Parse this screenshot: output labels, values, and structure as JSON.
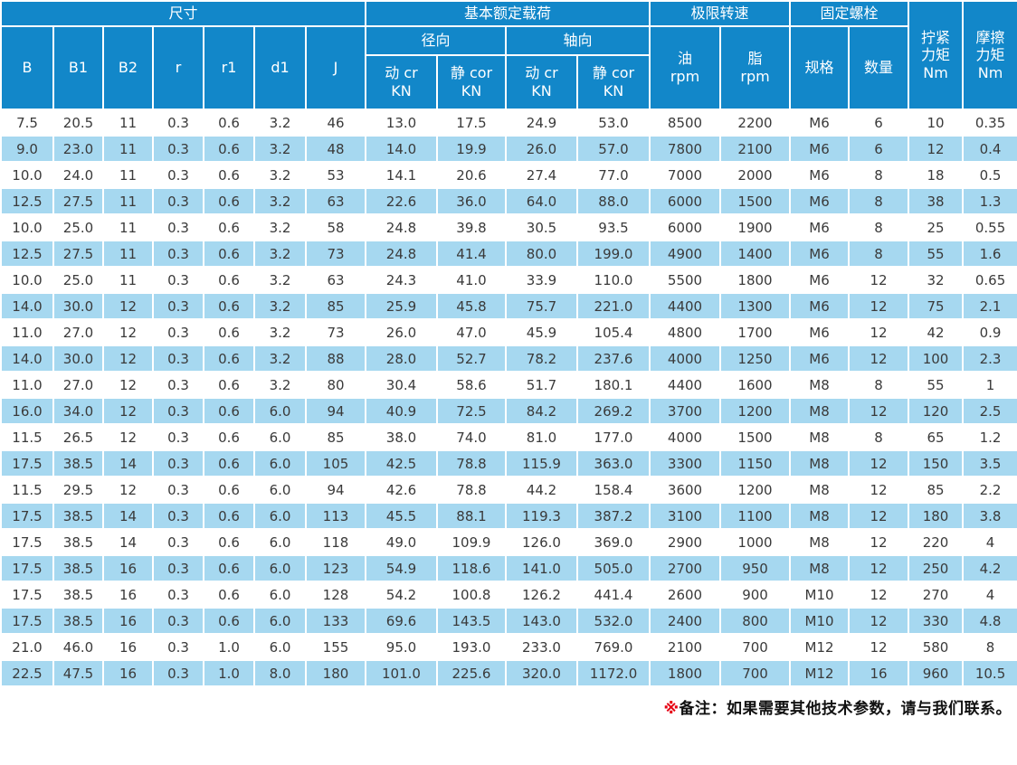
{
  "table": {
    "header": {
      "group_dimensions": "尺寸",
      "group_load": "基本额定载荷",
      "group_speed": "极限转速",
      "group_bolt": "固定螺栓",
      "tighten_torque": "拧紧\n力矩\nNm",
      "friction_torque": "摩擦\n力矩\nNm",
      "dims": [
        "B",
        "B1",
        "B2",
        "r",
        "r1",
        "d1",
        "J"
      ],
      "radial": "径向",
      "axial": "轴向",
      "dyn_cr": "动 cr\nKN",
      "stat_cor": "静 cor\nKN",
      "oil": "油\nrpm",
      "grease": "脂\nrpm",
      "spec": "规格",
      "qty": "数量"
    },
    "rows": [
      [
        "7.5",
        "20.5",
        "11",
        "0.3",
        "0.6",
        "3.2",
        "46",
        "13.0",
        "17.5",
        "24.9",
        "53.0",
        "8500",
        "2200",
        "M6",
        "6",
        "10",
        "0.35"
      ],
      [
        "9.0",
        "23.0",
        "11",
        "0.3",
        "0.6",
        "3.2",
        "48",
        "14.0",
        "19.9",
        "26.0",
        "57.0",
        "7800",
        "2100",
        "M6",
        "6",
        "12",
        "0.4"
      ],
      [
        "10.0",
        "24.0",
        "11",
        "0.3",
        "0.6",
        "3.2",
        "53",
        "14.1",
        "20.6",
        "27.4",
        "77.0",
        "7000",
        "2000",
        "M6",
        "8",
        "18",
        "0.5"
      ],
      [
        "12.5",
        "27.5",
        "11",
        "0.3",
        "0.6",
        "3.2",
        "63",
        "22.6",
        "36.0",
        "64.0",
        "88.0",
        "6000",
        "1500",
        "M6",
        "8",
        "38",
        "1.3"
      ],
      [
        "10.0",
        "25.0",
        "11",
        "0.3",
        "0.6",
        "3.2",
        "58",
        "24.8",
        "39.8",
        "30.5",
        "93.5",
        "6000",
        "1900",
        "M6",
        "8",
        "25",
        "0.55"
      ],
      [
        "12.5",
        "27.5",
        "11",
        "0.3",
        "0.6",
        "3.2",
        "73",
        "24.8",
        "41.4",
        "80.0",
        "199.0",
        "4900",
        "1400",
        "M6",
        "8",
        "55",
        "1.6"
      ],
      [
        "10.0",
        "25.0",
        "11",
        "0.3",
        "0.6",
        "3.2",
        "63",
        "24.3",
        "41.0",
        "33.9",
        "110.0",
        "5500",
        "1800",
        "M6",
        "12",
        "32",
        "0.65"
      ],
      [
        "14.0",
        "30.0",
        "12",
        "0.3",
        "0.6",
        "3.2",
        "85",
        "25.9",
        "45.8",
        "75.7",
        "221.0",
        "4400",
        "1300",
        "M6",
        "12",
        "75",
        "2.1"
      ],
      [
        "11.0",
        "27.0",
        "12",
        "0.3",
        "0.6",
        "3.2",
        "73",
        "26.0",
        "47.0",
        "45.9",
        "105.4",
        "4800",
        "1700",
        "M6",
        "12",
        "42",
        "0.9"
      ],
      [
        "14.0",
        "30.0",
        "12",
        "0.3",
        "0.6",
        "3.2",
        "88",
        "28.0",
        "52.7",
        "78.2",
        "237.6",
        "4000",
        "1250",
        "M6",
        "12",
        "100",
        "2.3"
      ],
      [
        "11.0",
        "27.0",
        "12",
        "0.3",
        "0.6",
        "3.2",
        "80",
        "30.4",
        "58.6",
        "51.7",
        "180.1",
        "4400",
        "1600",
        "M8",
        "8",
        "55",
        "1"
      ],
      [
        "16.0",
        "34.0",
        "12",
        "0.3",
        "0.6",
        "6.0",
        "94",
        "40.9",
        "72.5",
        "84.2",
        "269.2",
        "3700",
        "1200",
        "M8",
        "12",
        "120",
        "2.5"
      ],
      [
        "11.5",
        "26.5",
        "12",
        "0.3",
        "0.6",
        "6.0",
        "85",
        "38.0",
        "74.0",
        "81.0",
        "177.0",
        "4000",
        "1500",
        "M8",
        "8",
        "65",
        "1.2"
      ],
      [
        "17.5",
        "38.5",
        "14",
        "0.3",
        "0.6",
        "6.0",
        "105",
        "42.5",
        "78.8",
        "115.9",
        "363.0",
        "3300",
        "1150",
        "M8",
        "12",
        "150",
        "3.5"
      ],
      [
        "11.5",
        "29.5",
        "12",
        "0.3",
        "0.6",
        "6.0",
        "94",
        "42.6",
        "78.8",
        "44.2",
        "158.4",
        "3600",
        "1200",
        "M8",
        "12",
        "85",
        "2.2"
      ],
      [
        "17.5",
        "38.5",
        "14",
        "0.3",
        "0.6",
        "6.0",
        "113",
        "45.5",
        "88.1",
        "119.3",
        "387.2",
        "3100",
        "1100",
        "M8",
        "12",
        "180",
        "3.8"
      ],
      [
        "17.5",
        "38.5",
        "14",
        "0.3",
        "0.6",
        "6.0",
        "118",
        "49.0",
        "109.9",
        "126.0",
        "369.0",
        "2900",
        "1000",
        "M8",
        "12",
        "220",
        "4"
      ],
      [
        "17.5",
        "38.5",
        "16",
        "0.3",
        "0.6",
        "6.0",
        "123",
        "54.9",
        "118.6",
        "141.0",
        "505.0",
        "2700",
        "950",
        "M8",
        "12",
        "250",
        "4.2"
      ],
      [
        "17.5",
        "38.5",
        "16",
        "0.3",
        "0.6",
        "6.0",
        "128",
        "54.2",
        "100.8",
        "126.2",
        "441.4",
        "2600",
        "900",
        "M10",
        "12",
        "270",
        "4"
      ],
      [
        "17.5",
        "38.5",
        "16",
        "0.3",
        "0.6",
        "6.0",
        "133",
        "69.6",
        "143.5",
        "143.0",
        "532.0",
        "2400",
        "800",
        "M10",
        "12",
        "330",
        "4.8"
      ],
      [
        "21.0",
        "46.0",
        "16",
        "0.3",
        "1.0",
        "6.0",
        "155",
        "95.0",
        "193.0",
        "233.0",
        "769.0",
        "2100",
        "700",
        "M12",
        "12",
        "580",
        "8"
      ],
      [
        "22.5",
        "47.5",
        "16",
        "0.3",
        "1.0",
        "8.0",
        "180",
        "101.0",
        "225.6",
        "320.0",
        "1172.0",
        "1800",
        "700",
        "M12",
        "16",
        "960",
        "10.5"
      ]
    ]
  },
  "footnote": {
    "marker": "※",
    "text": "备注：如果需要其他技术参数，请与我们联系。"
  },
  "colors": {
    "header_bg": "#1287c9",
    "header_text": "#ffffff",
    "row_bg": "#ffffff",
    "row_alt_bg": "#a6d8f0",
    "text": "#3a3a3a",
    "note_marker": "#e60012"
  }
}
